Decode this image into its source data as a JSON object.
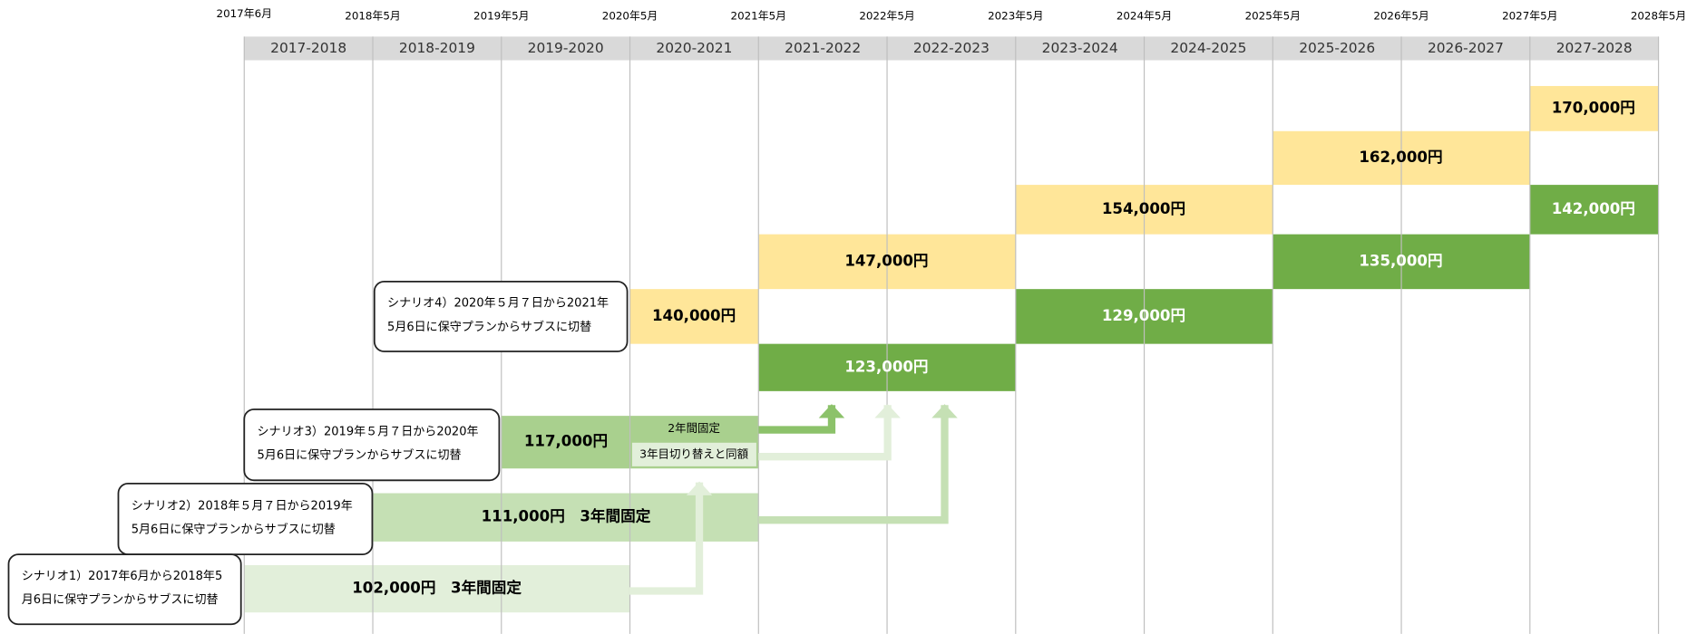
{
  "dates": [
    "2017年6月",
    "2018年5月",
    "2019年5月",
    "2020年5月",
    "2021年5月",
    "2022年5月",
    "2023年5月",
    "2024年5月",
    "2025年5月",
    "2026年5月",
    "2027年5月",
    "2028年5月"
  ],
  "periods": [
    "2017-2018",
    "2018-2019",
    "2019-2020",
    "2020-2021",
    "2021-2022",
    "2022-2023",
    "2023-2024",
    "2024-2025",
    "2025-2026",
    "2026-2027",
    "2027-2028"
  ],
  "bars": [
    {
      "label": "170,000円"
    },
    {
      "label": "162,000円"
    },
    {
      "label": "154,000円"
    },
    {
      "label": "142,000円"
    },
    {
      "label": "147,000円"
    },
    {
      "label": "135,000円"
    },
    {
      "label": "140,000円"
    },
    {
      "label": "129,000円"
    },
    {
      "label": "123,000円"
    },
    {
      "label": "117,000円"
    },
    {
      "label": "111,000円　3年間固定"
    },
    {
      "label": "102,000円　3年間固定"
    }
  ],
  "notes": [
    "2年間固定",
    "3年目切り替えと同額"
  ],
  "callouts": [
    {
      "lines": [
        "シナリオ4）2020年５月７日から2021年",
        "5月6日に保守プランからサブスに切替"
      ]
    },
    {
      "lines": [
        "シナリオ3）2019年５月７日から2020年",
        "5月6日に保守プランからサブスに切替"
      ]
    },
    {
      "lines": [
        "シナリオ2）2018年５月７日から2019年",
        "5月6日に保守プランからサブスに切替"
      ]
    },
    {
      "lines": [
        "シナリオ1）2017年6月から2018年5",
        "月6日に保守プランからサブスに切替"
      ]
    }
  ]
}
